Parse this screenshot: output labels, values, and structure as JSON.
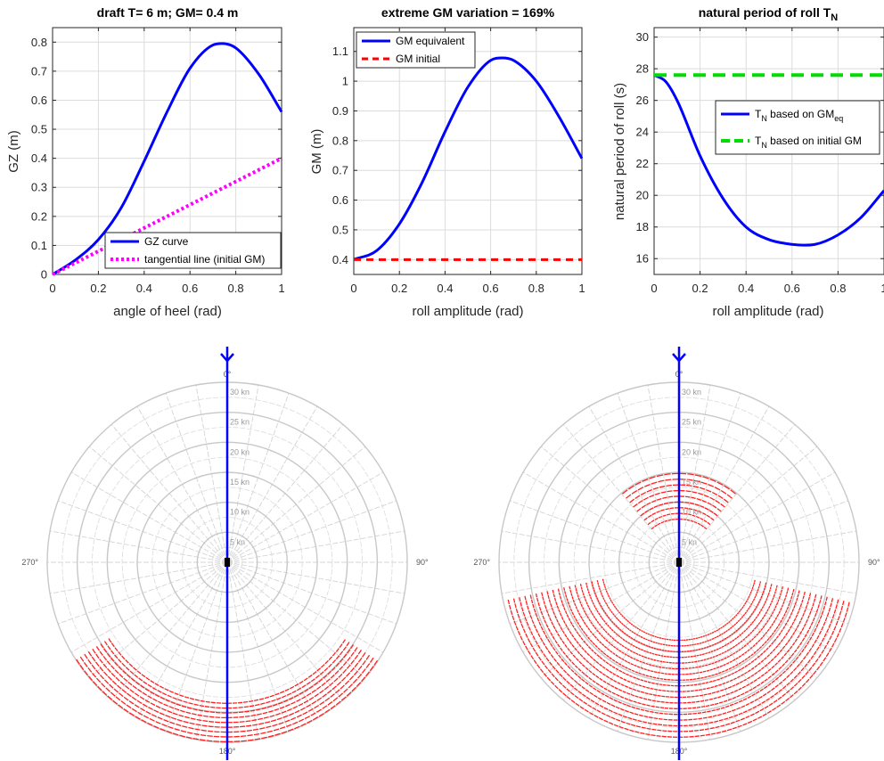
{
  "chart_data": [
    {
      "type": "line",
      "title": "draft T= 6 m; GM= 0.4 m",
      "xlabel": "angle of heel (rad)",
      "ylabel": "GZ (m)",
      "xlim": [
        0,
        1
      ],
      "ylim": [
        0,
        0.85
      ],
      "xticks": [
        "0",
        "0.2",
        "0.4",
        "0.6",
        "0.8",
        "1"
      ],
      "yticks": [
        "0",
        "0.1",
        "0.2",
        "0.3",
        "0.4",
        "0.5",
        "0.6",
        "0.7",
        "0.8"
      ],
      "grid": true,
      "legend": "bottom-right",
      "series": [
        {
          "name": "GZ curve",
          "color": "#0000ff",
          "style": "solid",
          "x": [
            0,
            0.1,
            0.2,
            0.3,
            0.4,
            0.5,
            0.6,
            0.7,
            0.74,
            0.8,
            0.9,
            1.0
          ],
          "y": [
            0,
            0.05,
            0.12,
            0.23,
            0.39,
            0.56,
            0.71,
            0.79,
            0.795,
            0.78,
            0.69,
            0.56
          ]
        },
        {
          "name": "tangential line (initial GM)",
          "color": "#ff00ff",
          "style": "dotted",
          "x": [
            0,
            1
          ],
          "y": [
            0,
            0.4
          ]
        }
      ]
    },
    {
      "type": "line",
      "title": "extreme GM variation = 169%",
      "xlabel": "roll amplitude (rad)",
      "ylabel": "GM (m)",
      "xlim": [
        0,
        1
      ],
      "ylim": [
        0.35,
        1.18
      ],
      "xticks": [
        "0",
        "0.2",
        "0.4",
        "0.6",
        "0.8",
        "1"
      ],
      "yticks": [
        "0.4",
        "0.5",
        "0.6",
        "0.7",
        "0.8",
        "0.9",
        "1",
        "1.1"
      ],
      "grid": true,
      "legend": "top-left",
      "series": [
        {
          "name": "GM equivalent",
          "color": "#0000ff",
          "style": "solid",
          "x": [
            0,
            0.1,
            0.2,
            0.3,
            0.4,
            0.5,
            0.6,
            0.65,
            0.7,
            0.8,
            0.9,
            1.0
          ],
          "y": [
            0.4,
            0.43,
            0.52,
            0.66,
            0.83,
            0.98,
            1.07,
            1.078,
            1.07,
            1.0,
            0.88,
            0.74
          ]
        },
        {
          "name": "GM initial",
          "color": "#ff0000",
          "style": "dashed",
          "x": [
            0,
            1
          ],
          "y": [
            0.4,
            0.4
          ]
        }
      ]
    },
    {
      "type": "line",
      "title": "natural period of roll T",
      "title_sub": "N",
      "xlabel": "roll amplitude (rad)",
      "ylabel": "natural period of roll (s)",
      "xlim": [
        0,
        1
      ],
      "ylim": [
        15,
        30.6
      ],
      "xticks": [
        "0",
        "0.2",
        "0.4",
        "0.6",
        "0.8",
        "1"
      ],
      "yticks": [
        "16",
        "18",
        "20",
        "22",
        "24",
        "26",
        "28",
        "30"
      ],
      "grid": true,
      "legend": "right",
      "series": [
        {
          "name": "T",
          "name_sub": "N",
          "name_rest": " based on GM",
          "name_sub2": "eq",
          "color": "#0000ff",
          "style": "solid",
          "x": [
            0,
            0.05,
            0.1,
            0.2,
            0.3,
            0.4,
            0.5,
            0.6,
            0.65,
            0.7,
            0.8,
            0.9,
            1.0
          ],
          "y": [
            27.6,
            27.2,
            26.0,
            22.5,
            19.8,
            18.0,
            17.2,
            16.9,
            16.85,
            16.9,
            17.5,
            18.6,
            20.3
          ]
        },
        {
          "name": "T",
          "name_sub": "N",
          "name_rest": " based on initial GM",
          "name_sub2": "",
          "color": "#00dd00",
          "style": "dashed",
          "x": [
            0,
            1
          ],
          "y": [
            27.6,
            27.6
          ]
        }
      ]
    },
    {
      "type": "polar",
      "angle_labels": [
        "0°",
        "90°",
        "180°",
        "270°"
      ],
      "speed_ticks": [
        "5 kn",
        "10 kn",
        "15 kn",
        "20 kn",
        "25 kn",
        "30 kn"
      ],
      "max_speed": 30,
      "heading_deg": 0,
      "heading_color": "#0000ff",
      "danger_color": "#ff2020",
      "danger_zones": [
        {
          "theta_from": 123,
          "theta_to": 237,
          "r_from": 23.5,
          "r_to": 30.0,
          "r_step": 0.8,
          "theta_step": 2.2
        }
      ]
    },
    {
      "type": "polar",
      "angle_labels": [
        "0°",
        "90°",
        "180°",
        "270°"
      ],
      "speed_ticks": [
        "5 kn",
        "10 kn",
        "15 kn",
        "20 kn",
        "25 kn",
        "30 kn"
      ],
      "max_speed": 30,
      "heading_deg": 0,
      "heading_color": "#0000ff",
      "danger_color": "#ff2020",
      "danger_zones": [
        {
          "theta_from": 320,
          "theta_to": 400,
          "r_from": 7.2,
          "r_to": 15.0,
          "r_step": 0.95,
          "theta_step": 5
        },
        {
          "theta_from": 103,
          "theta_to": 257,
          "r_from": 13.0,
          "r_to": 30.0,
          "r_step": 0.95,
          "theta_step": 1.8
        }
      ]
    }
  ]
}
